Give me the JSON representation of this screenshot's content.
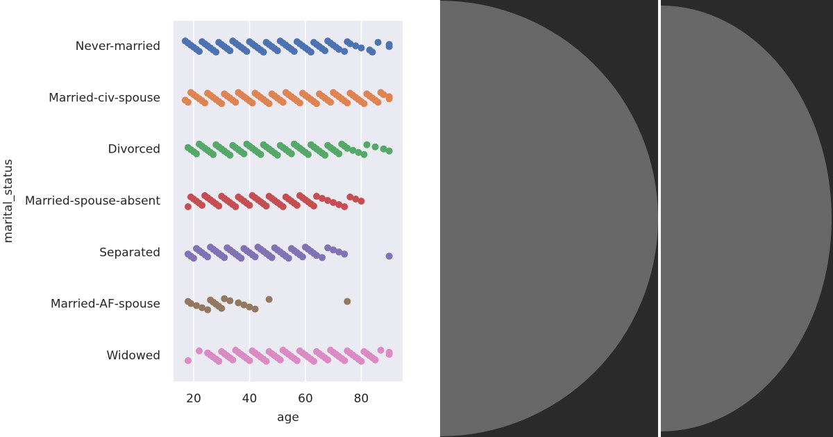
{
  "chart_data": {
    "type": "strip",
    "xlabel": "age",
    "ylabel": "marital_status",
    "categories": [
      "Never-married",
      "Married-civ-spouse",
      "Divorced",
      "Married-spouse-absent",
      "Separated",
      "Married-AF-spouse",
      "Widowed"
    ],
    "colors": [
      "#4c72b0",
      "#dd8452",
      "#55a868",
      "#c44e52",
      "#8172b3",
      "#937860",
      "#da8bc3"
    ],
    "values": [
      [
        17,
        18,
        19,
        20,
        21,
        22,
        23,
        24,
        25,
        26,
        27,
        28,
        29,
        30,
        31,
        32,
        33,
        34,
        35,
        36,
        37,
        38,
        39,
        40,
        41,
        42,
        43,
        44,
        45,
        46,
        47,
        48,
        49,
        50,
        51,
        52,
        53,
        54,
        55,
        56,
        57,
        58,
        59,
        60,
        61,
        62,
        63,
        64,
        65,
        66,
        67,
        68,
        69,
        70,
        71,
        72,
        74,
        75,
        76,
        78,
        80,
        83,
        84,
        86,
        90,
        90
      ],
      [
        17,
        18,
        19,
        20,
        21,
        22,
        23,
        24,
        25,
        26,
        27,
        28,
        29,
        30,
        31,
        32,
        33,
        34,
        35,
        36,
        37,
        38,
        39,
        40,
        41,
        42,
        43,
        44,
        45,
        46,
        47,
        48,
        49,
        50,
        51,
        52,
        53,
        54,
        55,
        56,
        57,
        58,
        59,
        60,
        61,
        62,
        63,
        64,
        65,
        66,
        67,
        68,
        69,
        70,
        71,
        72,
        73,
        74,
        75,
        76,
        77,
        78,
        79,
        80,
        81,
        82,
        83,
        84,
        85,
        86,
        87,
        88,
        90,
        90
      ],
      [
        18,
        19,
        20,
        21,
        22,
        23,
        24,
        25,
        26,
        27,
        28,
        29,
        30,
        31,
        32,
        33,
        34,
        35,
        36,
        37,
        38,
        39,
        40,
        41,
        42,
        43,
        44,
        45,
        46,
        47,
        48,
        49,
        50,
        51,
        52,
        53,
        54,
        55,
        56,
        57,
        58,
        59,
        60,
        61,
        62,
        63,
        64,
        65,
        66,
        67,
        68,
        69,
        70,
        71,
        72,
        73,
        74,
        75,
        77,
        79,
        81,
        82,
        85,
        88,
        90
      ],
      [
        18,
        19,
        20,
        21,
        22,
        23,
        24,
        25,
        26,
        27,
        28,
        29,
        30,
        31,
        32,
        33,
        34,
        35,
        36,
        37,
        38,
        39,
        40,
        41,
        42,
        43,
        44,
        45,
        46,
        47,
        48,
        49,
        50,
        51,
        52,
        53,
        54,
        55,
        56,
        57,
        58,
        59,
        60,
        61,
        62,
        63,
        64,
        66,
        68,
        70,
        72,
        74,
        76,
        78,
        80
      ],
      [
        18,
        19,
        20,
        21,
        22,
        23,
        24,
        25,
        26,
        27,
        28,
        29,
        30,
        31,
        32,
        33,
        34,
        35,
        36,
        37,
        38,
        39,
        40,
        41,
        42,
        43,
        44,
        45,
        46,
        47,
        48,
        49,
        50,
        51,
        52,
        53,
        54,
        55,
        56,
        57,
        58,
        59,
        60,
        61,
        62,
        63,
        64,
        66,
        68,
        70,
        72,
        74,
        90
      ],
      [
        18,
        19,
        21,
        23,
        25,
        26,
        27,
        28,
        29,
        30,
        31,
        33,
        36,
        38,
        40,
        42,
        47,
        75
      ],
      [
        18,
        22,
        25,
        26,
        27,
        28,
        29,
        30,
        31,
        32,
        33,
        34,
        35,
        36,
        37,
        38,
        39,
        40,
        41,
        42,
        43,
        44,
        45,
        46,
        47,
        48,
        49,
        50,
        51,
        52,
        53,
        54,
        55,
        56,
        57,
        58,
        59,
        60,
        61,
        62,
        63,
        64,
        65,
        66,
        67,
        68,
        69,
        70,
        71,
        72,
        73,
        74,
        75,
        76,
        77,
        78,
        79,
        80,
        81,
        82,
        83,
        84,
        85,
        87,
        90,
        90
      ]
    ],
    "xlim": [
      12.8,
      94.8
    ],
    "xticks": [
      20,
      40,
      60,
      80
    ],
    "grid": true
  }
}
